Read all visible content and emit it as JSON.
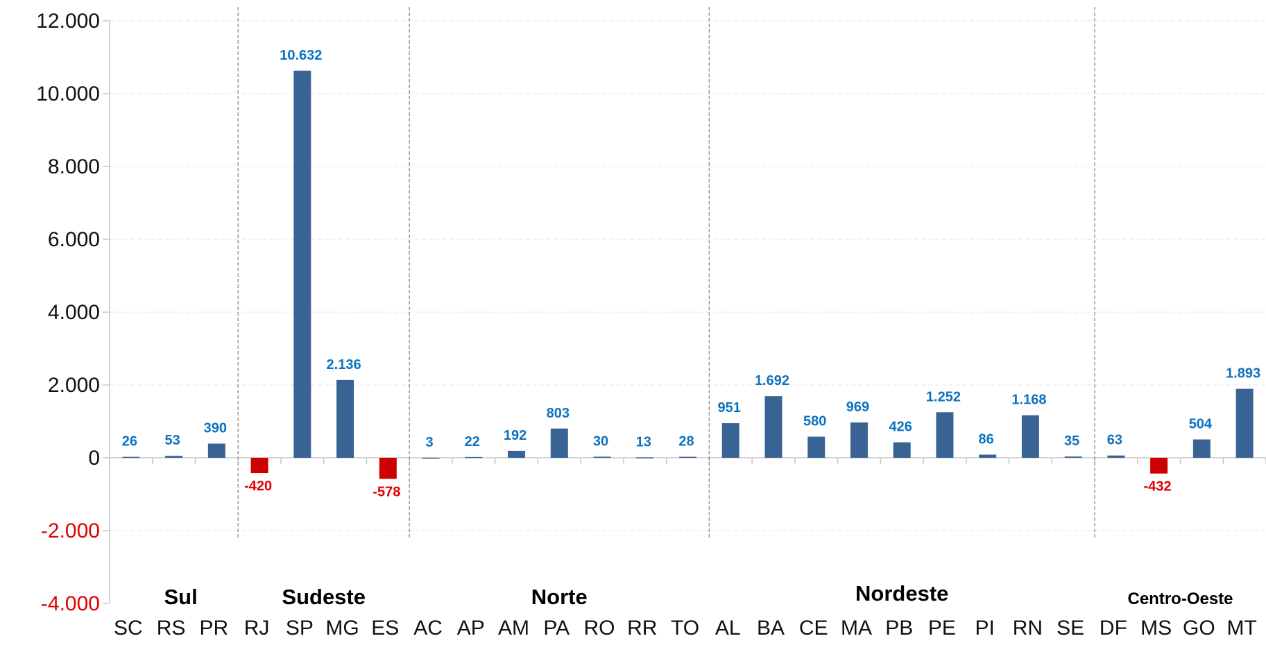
{
  "colors": {
    "positive_bar": "#3a6395",
    "negative_bar": "#cc0000",
    "positive_label": "#0b72c0",
    "negative_label": "#e00000",
    "axis_text": "#111111",
    "negative_tick": "#e00000",
    "grid": "#e6e6e6",
    "axis": "#c8c8c8",
    "separator": "#8a8a8a"
  },
  "chart_data": {
    "type": "bar",
    "categories": [
      "SC",
      "RS",
      "PR",
      "RJ",
      "SP",
      "MG",
      "ES",
      "AC",
      "AP",
      "AM",
      "PA",
      "RO",
      "RR",
      "TO",
      "AL",
      "BA",
      "CE",
      "MA",
      "PB",
      "PE",
      "PI",
      "RN",
      "SE",
      "DF",
      "MS",
      "GO",
      "MT"
    ],
    "values": [
      26,
      53,
      390,
      -420,
      10632,
      2136,
      -578,
      3,
      22,
      192,
      803,
      30,
      13,
      28,
      951,
      1692,
      580,
      969,
      426,
      1252,
      86,
      1168,
      35,
      63,
      -432,
      504,
      1893
    ],
    "data_labels": [
      "26",
      "53",
      "390",
      "-420",
      "10.632",
      "2.136",
      "-578",
      "3",
      "22",
      "192",
      "803",
      "30",
      "13",
      "28",
      "951",
      "1.692",
      "580",
      "969",
      "426",
      "1.252",
      "86",
      "1.168",
      "35",
      "63",
      "-432",
      "504",
      "1.893"
    ],
    "ylim": [
      -4000,
      12000
    ],
    "y_ticks": [
      {
        "value": 12000,
        "label": "12.000"
      },
      {
        "value": 10000,
        "label": "10.000"
      },
      {
        "value": 8000,
        "label": "8.000"
      },
      {
        "value": 6000,
        "label": "6.000"
      },
      {
        "value": 4000,
        "label": "4.000"
      },
      {
        "value": 2000,
        "label": "2.000"
      },
      {
        "value": 0,
        "label": "0"
      },
      {
        "value": -2000,
        "label": "-2.000"
      },
      {
        "value": -4000,
        "label": "-4.000"
      }
    ],
    "grid": true,
    "groups": [
      {
        "name": "Sul",
        "start": 0,
        "end": 2
      },
      {
        "name": "Sudeste",
        "start": 3,
        "end": 6
      },
      {
        "name": "Norte",
        "start": 7,
        "end": 13
      },
      {
        "name": "Nordeste",
        "start": 14,
        "end": 22
      },
      {
        "name": "Centro-Oeste",
        "start": 23,
        "end": 26
      }
    ]
  }
}
